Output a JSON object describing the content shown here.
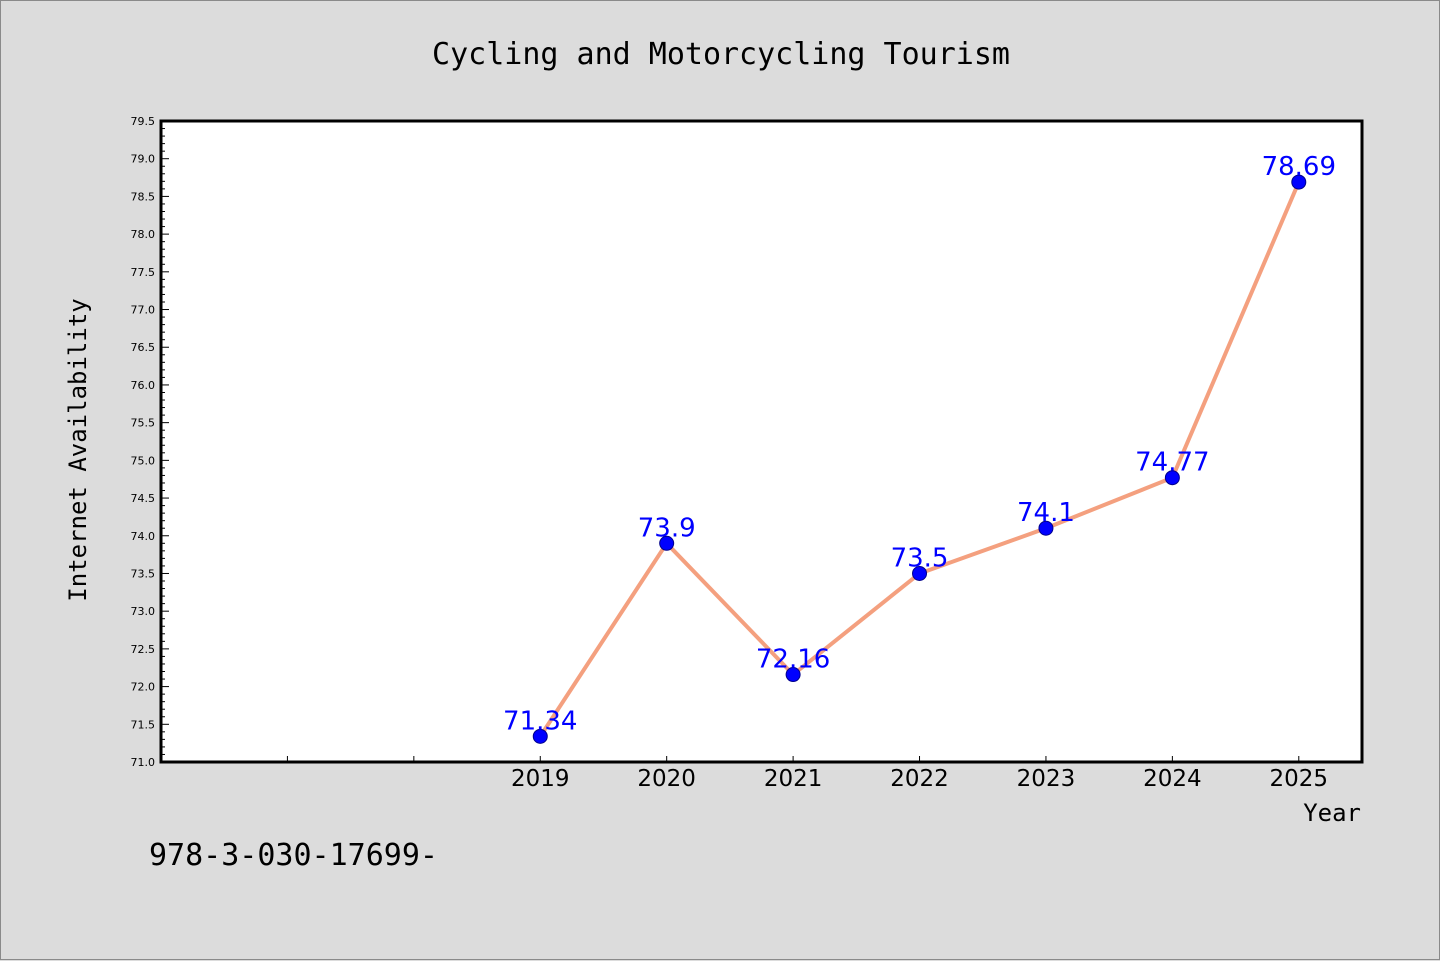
{
  "chart_data": {
    "type": "line",
    "title": "Cycling and Motorcycling Tourism",
    "xlabel": "Year",
    "ylabel": "Internet Availability",
    "categories": [
      "2019",
      "2020",
      "2021",
      "2022",
      "2023",
      "2024",
      "2025"
    ],
    "series": [
      {
        "values": [
          71.34,
          73.9,
          72.16,
          73.5,
          74.1,
          74.77,
          78.69
        ]
      }
    ],
    "data_labels": [
      "71.34",
      "73.9",
      "72.16",
      "73.5",
      "74.1",
      "74.77",
      "78.69"
    ],
    "y_ticks": [
      "71.0",
      "71.5",
      "72.0",
      "72.5",
      "73.0",
      "73.5",
      "74.0",
      "74.5",
      "75.0",
      "75.5",
      "76.0",
      "76.5",
      "77.0",
      "77.5",
      "78.0",
      "78.5",
      "79.0",
      "79.5"
    ],
    "ylim": [
      71.0,
      79.5
    ],
    "x_index_range": [
      -3,
      6.5
    ],
    "grid": false,
    "line_color": "#f4a07f",
    "marker_color": "#0000ff",
    "label_color": "#0000ff"
  },
  "footer": {
    "text": "978-3-030-17699-"
  }
}
